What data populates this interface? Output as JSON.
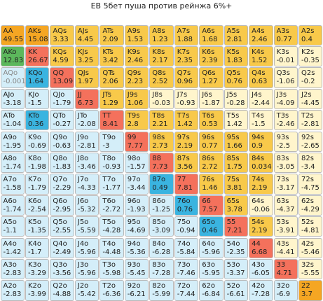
{
  "title": "EB 5бет пуша против рейнжа 6%+",
  "rows": [
    [
      {
        "hand": "AA",
        "value": 49.55,
        "color": "#f5a623"
      },
      {
        "hand": "AKs",
        "value": 15.08,
        "color": "#f5a623"
      },
      {
        "hand": "AQs",
        "value": 3.33,
        "color": "#f8c94a"
      },
      {
        "hand": "AJs",
        "value": 4.45,
        "color": "#f8c94a"
      },
      {
        "hand": "ATs",
        "value": 2.09,
        "color": "#f8c94a"
      },
      {
        "hand": "A9s",
        "value": 1.53,
        "color": "#f8c94a"
      },
      {
        "hand": "A8s",
        "value": 1.23,
        "color": "#f8c94a"
      },
      {
        "hand": "A7s",
        "value": 1.88,
        "color": "#f8c94a"
      },
      {
        "hand": "A6s",
        "value": 1.68,
        "color": "#f8c94a"
      },
      {
        "hand": "A5s",
        "value": 2.81,
        "color": "#f8c94a"
      },
      {
        "hand": "A4s",
        "value": 2.46,
        "color": "#f8c94a"
      },
      {
        "hand": "A3s",
        "value": 0.77,
        "color": "#f8c94a"
      },
      {
        "hand": "A2s",
        "value": 0.4,
        "color": "#f8c94a"
      }
    ],
    [
      {
        "hand": "AKo",
        "value": 12.83,
        "color": "#5cb85c"
      },
      {
        "hand": "KK",
        "value": 26.67,
        "color": "#f4715c"
      },
      {
        "hand": "KQs",
        "value": 4.59,
        "color": "#f8c94a"
      },
      {
        "hand": "KJs",
        "value": 3.25,
        "color": "#f8c94a"
      },
      {
        "hand": "KTs",
        "value": 3.42,
        "color": "#f8c94a"
      },
      {
        "hand": "K9s",
        "value": 2.46,
        "color": "#f8c94a"
      },
      {
        "hand": "K8s",
        "value": 2.17,
        "color": "#f8c94a"
      },
      {
        "hand": "K7s",
        "value": 2.35,
        "color": "#f8c94a"
      },
      {
        "hand": "K6s",
        "value": 2.39,
        "color": "#f8c94a"
      },
      {
        "hand": "K5s",
        "value": 1.83,
        "color": "#f8c94a"
      },
      {
        "hand": "K4s",
        "value": 1.52,
        "color": "#f8c94a"
      },
      {
        "hand": "K3s",
        "value": -0.01,
        "color": "#fff5cc"
      },
      {
        "hand": "K2s",
        "value": -0.35,
        "color": "#fff5cc"
      }
    ],
    [
      {
        "hand": "AQo",
        "value": -0.001,
        "color": "#d4eef9"
      },
      {
        "hand": "KQo",
        "value": 1.64,
        "color": "#3ab4e0"
      },
      {
        "hand": "QQ",
        "value": 13.09,
        "color": "#f4715c"
      },
      {
        "hand": "QJs",
        "value": 1.97,
        "color": "#f8c94a"
      },
      {
        "hand": "QTs",
        "value": 2.06,
        "color": "#f8c94a"
      },
      {
        "hand": "Q9s",
        "value": 2.23,
        "color": "#f8c94a"
      },
      {
        "hand": "Q8s",
        "value": 2.52,
        "color": "#f8c94a"
      },
      {
        "hand": "Q7s",
        "value": 0.96,
        "color": "#f8c94a"
      },
      {
        "hand": "Q6s",
        "value": 1.27,
        "color": "#f8c94a"
      },
      {
        "hand": "Q5s",
        "value": 0.76,
        "color": "#f8c94a"
      },
      {
        "hand": "Q4s",
        "value": 0.63,
        "color": "#f8c94a"
      },
      {
        "hand": "Q3s",
        "value": -1.06,
        "color": "#fff5cc"
      },
      {
        "hand": "Q2s",
        "value": -0.2,
        "color": "#fff5cc"
      }
    ],
    [
      {
        "hand": "AJo",
        "value": -3.18,
        "color": "#d4eef9"
      },
      {
        "hand": "KJo",
        "value": -1.5,
        "color": "#d4eef9"
      },
      {
        "hand": "QJo",
        "value": -1.79,
        "color": "#d4eef9"
      },
      {
        "hand": "JJ",
        "value": 6.73,
        "color": "#f4715c"
      },
      {
        "hand": "JTs",
        "value": 1.29,
        "color": "#f8c94a"
      },
      {
        "hand": "J9s",
        "value": 1.06,
        "color": "#f8c94a"
      },
      {
        "hand": "J8s",
        "value": -0.03,
        "color": "#fff5cc"
      },
      {
        "hand": "J7s",
        "value": -0.93,
        "color": "#fff5cc"
      },
      {
        "hand": "J6s",
        "value": -1.87,
        "color": "#fff5cc"
      },
      {
        "hand": "J5s",
        "value": -0.28,
        "color": "#fff5cc"
      },
      {
        "hand": "J4s",
        "value": -2.44,
        "color": "#fff5cc"
      },
      {
        "hand": "J3s",
        "value": -4.09,
        "color": "#fff5cc"
      },
      {
        "hand": "J2s",
        "value": -4.45,
        "color": "#fff5cc"
      }
    ],
    [
      {
        "hand": "ATo",
        "value": -1.04,
        "color": "#d4eef9"
      },
      {
        "hand": "KTo",
        "value": 0.36,
        "color": "#3ab4e0"
      },
      {
        "hand": "QTo",
        "value": -0.27,
        "color": "#d4eef9"
      },
      {
        "hand": "JTo",
        "value": -2.08,
        "color": "#d4eef9"
      },
      {
        "hand": "TT",
        "value": 8.41,
        "color": "#f4715c"
      },
      {
        "hand": "T9s",
        "value": 2.8,
        "color": "#f8c94a"
      },
      {
        "hand": "T8s",
        "value": 2.21,
        "color": "#f8c94a"
      },
      {
        "hand": "T7s",
        "value": 1.42,
        "color": "#f8c94a"
      },
      {
        "hand": "T6s",
        "value": 0.53,
        "color": "#f8c94a"
      },
      {
        "hand": "T5s",
        "value": 1.42,
        "color": "#fff5cc"
      },
      {
        "hand": "T4s",
        "value": -1.5,
        "color": "#fff5cc"
      },
      {
        "hand": "T3s",
        "value": -2.46,
        "color": "#fff5cc"
      },
      {
        "hand": "T2s",
        "value": -2.81,
        "color": "#fff5cc"
      }
    ],
    [
      {
        "hand": "A9o",
        "value": -1.95,
        "color": "#d4eef9"
      },
      {
        "hand": "K9o",
        "value": -0.69,
        "color": "#d4eef9"
      },
      {
        "hand": "Q9o",
        "value": -0.63,
        "color": "#d4eef9"
      },
      {
        "hand": "J9o",
        "value": -2.81,
        "color": "#d4eef9"
      },
      {
        "hand": "T9o",
        "value": -3,
        "color": "#d4eef9"
      },
      {
        "hand": "99",
        "value": 7.77,
        "color": "#f4715c"
      },
      {
        "hand": "98s",
        "value": 2.73,
        "color": "#f8c94a"
      },
      {
        "hand": "97s",
        "value": 2.19,
        "color": "#f8c94a"
      },
      {
        "hand": "96s",
        "value": 0.77,
        "color": "#f8c94a"
      },
      {
        "hand": "95s",
        "value": 1.66,
        "color": "#f8c94a"
      },
      {
        "hand": "94s",
        "value": 0.9,
        "color": "#f8c94a"
      },
      {
        "hand": "93s",
        "value": -2.5,
        "color": "#fff5cc"
      },
      {
        "hand": "92s",
        "value": -2.65,
        "color": "#fff5cc"
      }
    ],
    [
      {
        "hand": "A8o",
        "value": -1.74,
        "color": "#d4eef9"
      },
      {
        "hand": "K8o",
        "value": -1.98,
        "color": "#d4eef9"
      },
      {
        "hand": "Q8o",
        "value": -1.83,
        "color": "#d4eef9"
      },
      {
        "hand": "J8o",
        "value": -3.46,
        "color": "#d4eef9"
      },
      {
        "hand": "T8o",
        "value": -0.93,
        "color": "#d4eef9"
      },
      {
        "hand": "98o",
        "value": -1.57,
        "color": "#d4eef9"
      },
      {
        "hand": "88",
        "value": 7.73,
        "color": "#f4715c"
      },
      {
        "hand": "87s",
        "value": 3.56,
        "color": "#f8c94a"
      },
      {
        "hand": "86s",
        "value": 2.72,
        "color": "#f8c94a"
      },
      {
        "hand": "85s",
        "value": 1.75,
        "color": "#f8c94a"
      },
      {
        "hand": "84s",
        "value": 0.034,
        "color": "#f8c94a"
      },
      {
        "hand": "83s",
        "value": -3.05,
        "color": "#fff5cc"
      },
      {
        "hand": "82s",
        "value": -3.4,
        "color": "#fff5cc"
      }
    ],
    [
      {
        "hand": "A7o",
        "value": -1.58,
        "color": "#d4eef9"
      },
      {
        "hand": "K7o",
        "value": -1.79,
        "color": "#d4eef9"
      },
      {
        "hand": "Q7o",
        "value": -2.29,
        "color": "#d4eef9"
      },
      {
        "hand": "J7o",
        "value": -4.33,
        "color": "#d4eef9"
      },
      {
        "hand": "T7o",
        "value": -1.77,
        "color": "#d4eef9"
      },
      {
        "hand": "97o",
        "value": -3.44,
        "color": "#d4eef9"
      },
      {
        "hand": "87o",
        "value": 0.49,
        "color": "#3ab4e0"
      },
      {
        "hand": "77",
        "value": 7.81,
        "color": "#f4715c"
      },
      {
        "hand": "76s",
        "value": 1.46,
        "color": "#f8c94a"
      },
      {
        "hand": "75s",
        "value": 3.81,
        "color": "#f8c94a"
      },
      {
        "hand": "74s",
        "value": 2.19,
        "color": "#f8c94a"
      },
      {
        "hand": "73s",
        "value": -3.17,
        "color": "#fff5cc"
      },
      {
        "hand": "72s",
        "value": -4.75,
        "color": "#fff5cc"
      }
    ],
    [
      {
        "hand": "A6o",
        "value": -1.74,
        "color": "#d4eef9"
      },
      {
        "hand": "K6o",
        "value": -2.54,
        "color": "#d4eef9"
      },
      {
        "hand": "Q6o",
        "value": -2.95,
        "color": "#d4eef9"
      },
      {
        "hand": "J6o",
        "value": -5.32,
        "color": "#d4eef9"
      },
      {
        "hand": "T6o",
        "value": -2.72,
        "color": "#d4eef9"
      },
      {
        "hand": "96o",
        "value": -1.93,
        "color": "#d4eef9"
      },
      {
        "hand": "86o",
        "value": -1.25,
        "color": "#d4eef9"
      },
      {
        "hand": "76o",
        "value": 0.76,
        "color": "#3ab4e0"
      },
      {
        "hand": "66",
        "value": 7.57,
        "color": "#f4715c"
      },
      {
        "hand": "65s",
        "value": 3.78,
        "color": "#f8c94a"
      },
      {
        "hand": "64s",
        "value": -0.06,
        "color": "#fff5cc"
      },
      {
        "hand": "63s",
        "value": -4.37,
        "color": "#fff5cc"
      },
      {
        "hand": "62s",
        "value": -4.29,
        "color": "#fff5cc"
      }
    ],
    [
      {
        "hand": "A5o",
        "value": -1.1,
        "color": "#d4eef9"
      },
      {
        "hand": "K5o",
        "value": -1.35,
        "color": "#d4eef9"
      },
      {
        "hand": "Q5o",
        "value": -2.55,
        "color": "#d4eef9"
      },
      {
        "hand": "J5o",
        "value": -5.59,
        "color": "#d4eef9"
      },
      {
        "hand": "T5o",
        "value": -4.28,
        "color": "#d4eef9"
      },
      {
        "hand": "95o",
        "value": -4.69,
        "color": "#d4eef9"
      },
      {
        "hand": "85o",
        "value": -3.09,
        "color": "#d4eef9"
      },
      {
        "hand": "75o",
        "value": -0.94,
        "color": "#d4eef9"
      },
      {
        "hand": "65o",
        "value": 0.46,
        "color": "#3ab4e0"
      },
      {
        "hand": "55",
        "value": 7.21,
        "color": "#f4715c"
      },
      {
        "hand": "54s",
        "value": 2.19,
        "color": "#f8c94a"
      },
      {
        "hand": "53s",
        "value": -3.91,
        "color": "#fff5cc"
      },
      {
        "hand": "52s",
        "value": -4.81,
        "color": "#fff5cc"
      }
    ],
    [
      {
        "hand": "A4o",
        "value": -1.42,
        "color": "#d4eef9"
      },
      {
        "hand": "K4o",
        "value": -1.7,
        "color": "#d4eef9"
      },
      {
        "hand": "Q4o",
        "value": -2.49,
        "color": "#d4eef9"
      },
      {
        "hand": "J4o",
        "value": -5.96,
        "color": "#d4eef9"
      },
      {
        "hand": "T4o",
        "value": -4.48,
        "color": "#d4eef9"
      },
      {
        "hand": "94o",
        "value": -5.36,
        "color": "#d4eef9"
      },
      {
        "hand": "84o",
        "value": -6.28,
        "color": "#d4eef9"
      },
      {
        "hand": "74o",
        "value": -5.84,
        "color": "#d4eef9"
      },
      {
        "hand": "64o",
        "value": -5.96,
        "color": "#d4eef9"
      },
      {
        "hand": "54o",
        "value": -2.35,
        "color": "#d4eef9"
      },
      {
        "hand": "44",
        "value": 6.68,
        "color": "#f4715c"
      },
      {
        "hand": "43s",
        "value": -4.41,
        "color": "#fff5cc"
      },
      {
        "hand": "42s",
        "value": -5.46,
        "color": "#fff5cc"
      }
    ],
    [
      {
        "hand": "A3o",
        "value": -2.83,
        "color": "#d4eef9"
      },
      {
        "hand": "K3o",
        "value": -3.29,
        "color": "#d4eef9"
      },
      {
        "hand": "Q3o",
        "value": -3.56,
        "color": "#d4eef9"
      },
      {
        "hand": "J3o",
        "value": -5.96,
        "color": "#d4eef9"
      },
      {
        "hand": "T3o",
        "value": -5.98,
        "color": "#d4eef9"
      },
      {
        "hand": "93o",
        "value": -5.45,
        "color": "#d4eef9"
      },
      {
        "hand": "83o",
        "value": -7.28,
        "color": "#d4eef9"
      },
      {
        "hand": "73o",
        "value": -7.46,
        "color": "#d4eef9"
      },
      {
        "hand": "63o",
        "value": -5.95,
        "color": "#d4eef9"
      },
      {
        "hand": "53o",
        "value": -3.37,
        "color": "#d4eef9"
      },
      {
        "hand": "43o",
        "value": -6.05,
        "color": "#d4eef9"
      },
      {
        "hand": "33",
        "value": 4.71,
        "color": "#f4715c"
      },
      {
        "hand": "32s",
        "value": -5.55,
        "color": "#fff5cc"
      }
    ],
    [
      {
        "hand": "A2o",
        "value": -2.83,
        "color": "#d4eef9"
      },
      {
        "hand": "K2o",
        "value": -3.99,
        "color": "#d4eef9"
      },
      {
        "hand": "Q2o",
        "value": -4.88,
        "color": "#d4eef9"
      },
      {
        "hand": "J2o",
        "value": -5.42,
        "color": "#d4eef9"
      },
      {
        "hand": "T2o",
        "value": -6.36,
        "color": "#d4eef9"
      },
      {
        "hand": "92o",
        "value": -6.21,
        "color": "#d4eef9"
      },
      {
        "hand": "82o",
        "value": -5.99,
        "color": "#d4eef9"
      },
      {
        "hand": "72o",
        "value": -7.44,
        "color": "#d4eef9"
      },
      {
        "hand": "62o",
        "value": -6.84,
        "color": "#d4eef9"
      },
      {
        "hand": "52o",
        "value": -6.61,
        "color": "#d4eef9"
      },
      {
        "hand": "42o",
        "value": -7.28,
        "color": "#d4eef9"
      },
      {
        "hand": "32o",
        "value": -6.9,
        "color": "#d4eef9"
      },
      {
        "hand": "22",
        "value": 3.7,
        "color": "#f5a623"
      }
    ]
  ]
}
